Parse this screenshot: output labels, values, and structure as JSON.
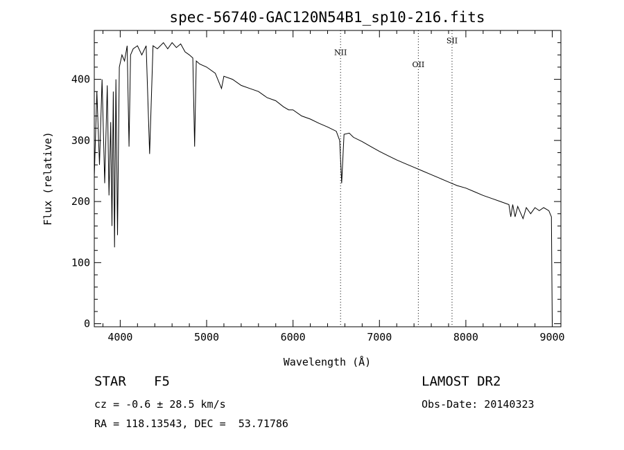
{
  "chart_data": {
    "type": "line",
    "title": "spec-56740-GAC120N54B1_sp10-216.fits",
    "xlabel": "Wavelength (Å)",
    "ylabel": "Flux (relative)",
    "xlim": [
      3700,
      9100
    ],
    "ylim": [
      -5,
      480
    ],
    "xticks": [
      4000,
      5000,
      6000,
      7000,
      8000,
      9000
    ],
    "yticks": [
      0,
      100,
      200,
      300,
      400
    ],
    "grid": false,
    "color": "#000000",
    "series": [
      {
        "x": [
          3700,
          3730,
          3760,
          3790,
          3820,
          3850,
          3870,
          3890,
          3905,
          3920,
          3934,
          3950,
          3969,
          3990,
          4020,
          4050,
          4080,
          4102,
          4120,
          4150,
          4200,
          4250,
          4300,
          4340,
          4380,
          4430,
          4500,
          4550,
          4600,
          4650,
          4700,
          4750,
          4800,
          4840,
          4861,
          4880,
          4920,
          5000,
          5100,
          5172,
          5200,
          5300,
          5400,
          5500,
          5600,
          5700,
          5800,
          5890,
          5950,
          6000,
          6100,
          6200,
          6300,
          6400,
          6500,
          6540,
          6563,
          6590,
          6650,
          6700,
          6800,
          6900,
          7000,
          7100,
          7200,
          7300,
          7400,
          7500,
          7600,
          7700,
          7800,
          7900,
          8000,
          8100,
          8200,
          8300,
          8400,
          8498,
          8520,
          8542,
          8570,
          8600,
          8662,
          8700,
          8750,
          8800,
          8850,
          8900,
          8960,
          8990,
          9000
        ],
        "y": [
          240,
          380,
          260,
          400,
          230,
          390,
          210,
          330,
          160,
          380,
          125,
          400,
          145,
          420,
          440,
          430,
          455,
          290,
          440,
          450,
          455,
          440,
          455,
          278,
          455,
          450,
          460,
          450,
          460,
          452,
          458,
          445,
          440,
          435,
          290,
          430,
          425,
          420,
          410,
          385,
          405,
          400,
          390,
          385,
          380,
          370,
          365,
          355,
          350,
          350,
          340,
          335,
          328,
          322,
          315,
          300,
          230,
          310,
          312,
          305,
          298,
          290,
          282,
          275,
          268,
          262,
          256,
          250,
          244,
          238,
          232,
          226,
          222,
          216,
          210,
          205,
          200,
          195,
          175,
          195,
          175,
          192,
          172,
          190,
          180,
          190,
          185,
          190,
          185,
          175,
          0
        ]
      }
    ],
    "annotations": [
      {
        "label": "NII",
        "x": 6550,
        "label_y": 440
      },
      {
        "label": "OII",
        "x": 7450,
        "label_y": 420
      },
      {
        "label": "SII",
        "x": 7840,
        "label_y": 459
      }
    ]
  },
  "footer": {
    "object_class": "STAR",
    "subclass": "F5",
    "survey": "LAMOST DR2",
    "cz": "cz = -0.6 ± 28.5 km/s",
    "obs_date": "Obs-Date: 20140323",
    "coords": "RA = 118.13543, DEC =  53.71786"
  }
}
